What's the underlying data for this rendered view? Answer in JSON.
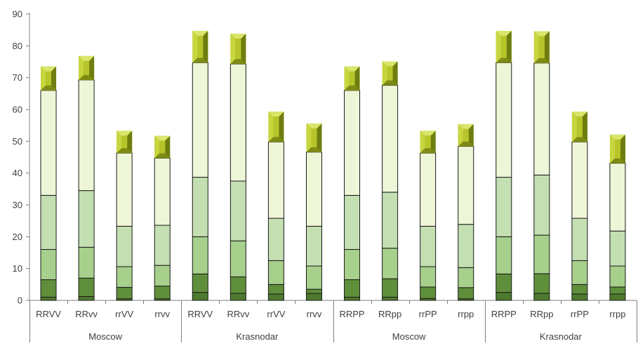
{
  "chart_data": {
    "type": "bar",
    "stacked": true,
    "ylim": [
      0,
      90
    ],
    "yticks": [
      0,
      10,
      20,
      30,
      40,
      50,
      60,
      70,
      80,
      90
    ],
    "grid": false,
    "legend": "none",
    "groups": [
      {
        "label": "Moscow",
        "categories": [
          "RRVV",
          "RRvv",
          "rrVV",
          "rrvv"
        ]
      },
      {
        "label": "Krasnodar",
        "categories": [
          "RRVV",
          "RRvv",
          "rrVV",
          "rrvv"
        ]
      },
      {
        "label": "Moscow",
        "categories": [
          "RRPP",
          "RRpp",
          "rrPP",
          "rrpp"
        ]
      },
      {
        "label": "Krasnodar",
        "categories": [
          "RRPP",
          "RRpp",
          "rrPP",
          "rrpp"
        ]
      }
    ],
    "categories": [
      "RRVV",
      "RRvv",
      "rrVV",
      "rrvv",
      "RRVV",
      "RRvv",
      "rrVV",
      "rrvv",
      "RRPP",
      "RRpp",
      "rrPP",
      "rrpp",
      "RRPP",
      "RRpp",
      "rrPP",
      "rrpp"
    ],
    "series": [
      {
        "color": "#4e7a2e",
        "values": [
          1,
          1.2,
          0.5,
          0.5,
          2.5,
          2.2,
          2,
          2.2,
          1,
          1,
          0.6,
          0.5,
          2.5,
          2.2,
          2,
          2
        ]
      },
      {
        "color": "#5f8f3b",
        "values": [
          5.5,
          5.8,
          3.6,
          4,
          5.8,
          5.2,
          3,
          1.3,
          5.5,
          5.8,
          3.6,
          3.5,
          5.8,
          6.2,
          3,
          2.2
        ]
      },
      {
        "color": "#a7d08c",
        "values": [
          9.5,
          9.7,
          6.5,
          6.5,
          11.7,
          11.3,
          7.5,
          7.3,
          9.5,
          9.6,
          6.4,
          6.3,
          11.7,
          12.1,
          7.5,
          6.6
        ]
      },
      {
        "color": "#c4dfb2",
        "values": [
          17,
          17.8,
          12.7,
          12.6,
          18.7,
          18.8,
          13.3,
          12.5,
          17,
          17.6,
          12.7,
          13.6,
          18.7,
          18.9,
          13.3,
          11
        ]
      },
      {
        "color": "#eef6d8",
        "values": [
          33,
          34.8,
          23,
          21.1,
          36,
          36.8,
          24,
          23.3,
          33,
          33.6,
          23,
          24.5,
          36,
          35.2,
          24,
          21.3
        ]
      },
      {
        "color": "#b6c62a",
        "values": [
          7.5,
          7.5,
          7,
          7,
          10,
          9.5,
          9.5,
          9,
          7.5,
          7.5,
          7,
          7,
          10,
          10,
          9.5,
          9
        ]
      }
    ]
  }
}
